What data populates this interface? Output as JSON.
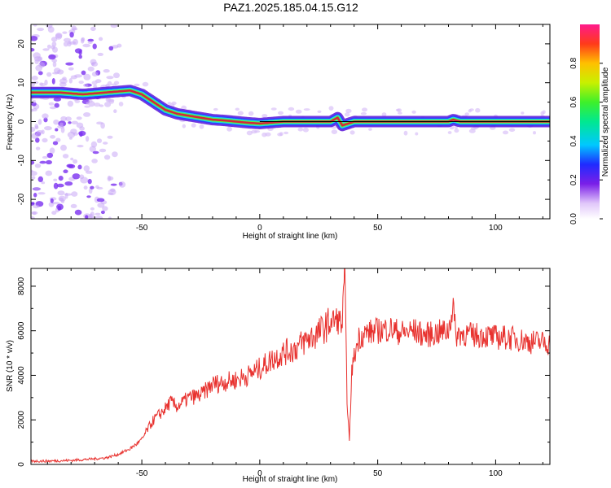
{
  "title": "PAZ1.2025.185.04.15.G12",
  "colors": {
    "snr_line": "#e8322f",
    "ridge_dark": "#3a0a9e",
    "scatter": "#b48cf0",
    "core": "#d6243c",
    "frame": "#000000"
  },
  "chart_data": [
    {
      "type": "heatmap",
      "title": "PAZ1.2025.185.04.15.G12",
      "xlabel": "Height of straight line (km)",
      "ylabel": "Frequency (Hz)",
      "xlim": [
        -97,
        123
      ],
      "ylim": [
        -25,
        25
      ],
      "xticks": [
        -50,
        0,
        50,
        100
      ],
      "yticks": [
        20,
        10,
        0,
        -10,
        -20
      ],
      "grid": false,
      "colorbar": {
        "label": "Normalized spectral amplitude",
        "range": [
          0,
          1
        ],
        "ticks": [
          "0.0",
          "0.2",
          "0.4",
          "0.6",
          "0.8"
        ],
        "colormap": "rainbow"
      },
      "ridge": {
        "x": [
          -97,
          -85,
          -75,
          -65,
          -55,
          -50,
          -45,
          -40,
          -35,
          -30,
          -25,
          -20,
          -15,
          -10,
          -5,
          0,
          10,
          20,
          30,
          33,
          35,
          40,
          50,
          60,
          70,
          80,
          82,
          85,
          100,
          123
        ],
        "freq": [
          7.5,
          7.5,
          7,
          7.5,
          8,
          7,
          5,
          3,
          2,
          1.5,
          1,
          0.5,
          0.3,
          0,
          -0.3,
          -0.5,
          0,
          0,
          0,
          1,
          -1,
          0,
          0,
          0,
          0,
          0,
          0.5,
          0,
          0,
          0
        ]
      }
    },
    {
      "type": "line",
      "title": "",
      "xlabel": "Height of straight line (km)",
      "ylabel": "SNR (10 * v/v)",
      "xlim": [
        -97,
        123
      ],
      "ylim": [
        0,
        8800
      ],
      "xticks": [
        -50,
        0,
        50,
        100
      ],
      "yticks": [
        0,
        2000,
        4000,
        6000,
        8000
      ],
      "grid": false,
      "series": [
        {
          "name": "",
          "x": [
            -97,
            -90,
            -80,
            -70,
            -65,
            -60,
            -55,
            -50,
            -48,
            -45,
            -42,
            -40,
            -38,
            -35,
            -30,
            -25,
            -20,
            -15,
            -10,
            -5,
            0,
            5,
            10,
            15,
            20,
            25,
            28,
            30,
            33,
            35,
            36,
            37,
            38,
            39,
            40,
            42,
            45,
            50,
            55,
            60,
            65,
            70,
            75,
            80,
            82,
            83,
            85,
            90,
            95,
            100,
            105,
            110,
            115,
            120,
            123
          ],
          "values": [
            150,
            150,
            180,
            250,
            300,
            450,
            700,
            1100,
            1500,
            2000,
            2300,
            2500,
            2800,
            2600,
            3000,
            3100,
            3600,
            3700,
            3800,
            4000,
            4300,
            4700,
            5000,
            5200,
            5600,
            5900,
            6200,
            6400,
            6500,
            6300,
            8700,
            3000,
            1000,
            4200,
            4800,
            5700,
            5900,
            6000,
            6100,
            5900,
            6000,
            5800,
            5900,
            6000,
            7200,
            5800,
            5900,
            5800,
            5800,
            5700,
            5700,
            5600,
            5500,
            5500,
            5400
          ]
        }
      ]
    }
  ]
}
